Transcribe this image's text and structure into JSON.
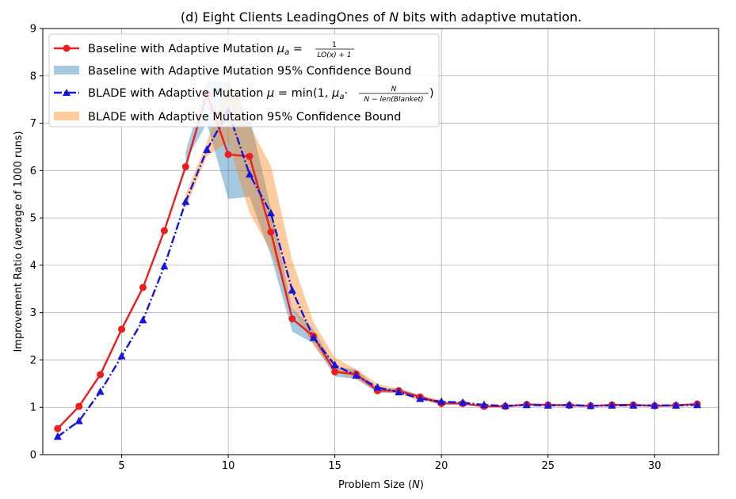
{
  "chart_data": {
    "type": "line",
    "title_prefix": "(d) Eight Clients LeadingOnes of ",
    "title_var": "N",
    "title_suffix": " bits with adaptive mutation.",
    "xlabel_prefix": "Problem Size (",
    "xlabel_var": "N",
    "xlabel_suffix": ")",
    "ylabel": "Improvement Ratio (average of 1000 runs)",
    "xlim": [
      1.3,
      33.0
    ],
    "ylim": [
      0,
      9
    ],
    "xticks": [
      5,
      10,
      15,
      20,
      25,
      30
    ],
    "yticks": [
      0,
      1,
      2,
      3,
      4,
      5,
      6,
      7,
      8,
      9
    ],
    "grid": true,
    "legend_position": "top-left",
    "x": [
      2,
      3,
      4,
      5,
      6,
      7,
      8,
      9,
      10,
      11,
      12,
      13,
      14,
      15,
      16,
      17,
      18,
      19,
      20,
      21,
      22,
      23,
      24,
      25,
      26,
      27,
      28,
      29,
      30,
      31,
      32
    ],
    "series": [
      {
        "name": "Baseline with Adaptive Mutation",
        "color": "#ee1c1c",
        "marker": "circle",
        "linestyle": "solid",
        "values": [
          0.55,
          1.02,
          1.69,
          2.65,
          3.53,
          4.73,
          6.08,
          7.62,
          6.34,
          6.3,
          4.7,
          2.87,
          2.5,
          1.75,
          1.7,
          1.35,
          1.35,
          1.22,
          1.08,
          1.08,
          1.02,
          1.02,
          1.06,
          1.05,
          1.04,
          1.03,
          1.05,
          1.05,
          1.03,
          1.04,
          1.07
        ]
      },
      {
        "name": "BLADE with Adaptive Mutation",
        "color": "#1515dd",
        "marker": "triangle",
        "linestyle": "dashdot",
        "values": [
          0.38,
          0.71,
          1.33,
          2.08,
          2.84,
          3.98,
          5.34,
          6.44,
          7.25,
          5.92,
          5.1,
          3.47,
          2.47,
          1.89,
          1.67,
          1.42,
          1.32,
          1.18,
          1.12,
          1.1,
          1.05,
          1.03,
          1.05,
          1.04,
          1.05,
          1.03,
          1.04,
          1.04,
          1.04,
          1.04,
          1.05
        ]
      }
    ],
    "bands": [
      {
        "name": "Baseline with Adaptive Mutation 95% Confidence Bound",
        "color": "#1f77b4",
        "x": [
          8,
          9,
          10,
          11,
          12,
          13,
          14,
          15,
          16,
          17,
          18,
          19,
          20
        ],
        "lower": [
          6.2,
          7.0,
          5.4,
          5.45,
          4.2,
          2.6,
          2.35,
          1.65,
          1.6,
          1.3,
          1.3,
          1.18,
          1.05
        ],
        "upper": [
          6.4,
          7.9,
          7.85,
          7.15,
          5.2,
          3.1,
          2.65,
          1.85,
          1.8,
          1.4,
          1.4,
          1.26,
          1.12
        ]
      },
      {
        "name": "BLADE with Adaptive Mutation 95% Confidence Bound",
        "color": "#ff7f0e",
        "x": [
          8,
          9,
          10,
          11,
          12,
          13,
          14,
          15,
          16,
          17,
          18,
          19,
          20
        ],
        "lower": [
          5.2,
          6.3,
          6.6,
          5.1,
          4.3,
          3.1,
          2.3,
          1.75,
          1.6,
          1.35,
          1.28,
          1.14,
          1.08
        ],
        "upper": [
          5.5,
          6.6,
          7.95,
          6.95,
          6.1,
          4.1,
          2.8,
          2.05,
          1.8,
          1.5,
          1.38,
          1.24,
          1.16
        ]
      }
    ],
    "legend": [
      {
        "text": "Baseline with Adaptive Mutation ",
        "math_lhs": "μ",
        "math_sub": "a",
        "math_eq": " = ",
        "frac_num": "1",
        "frac_den": "LO(x) + 1"
      },
      {
        "text": "Baseline with Adaptive Mutation 95% Confidence Bound"
      },
      {
        "text": "BLADE with Adaptive Mutation ",
        "math_lhs": "μ",
        "math_eq": " = min(1, ",
        "math_mu": "μ",
        "math_sub": "a",
        "math_dot": "·",
        "frac_num": "N",
        "frac_den": "N − len(Blanket)",
        "math_close": ")"
      },
      {
        "text": "BLADE with Adaptive Mutation 95% Confidence Bound"
      }
    ]
  }
}
